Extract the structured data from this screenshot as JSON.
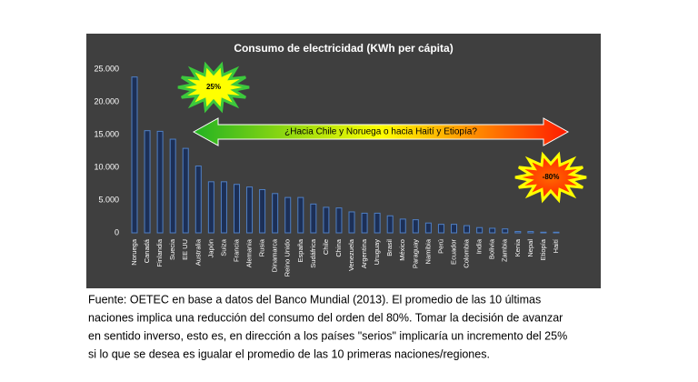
{
  "chart_data": {
    "type": "bar",
    "title": "Consumo de electricidad (KWh per cápita)",
    "categories": [
      "Noruega",
      "Canadá",
      "Finlandia",
      "Suecia",
      "EE UU",
      "Australia",
      "Japón",
      "Suiza",
      "Francia",
      "Alemania",
      "Rusia",
      "Dinamarca",
      "Reino Unido",
      "España",
      "Sudáfrica",
      "Chile",
      "China",
      "Venezuela",
      "Argentina",
      "Uruguay",
      "Brasil",
      "México",
      "Paraguay",
      "Namibia",
      "Perú",
      "Ecuador",
      "Colombia",
      "India",
      "Bolivia",
      "Zambia",
      "Kenia",
      "Nepal",
      "Etiopía",
      "Haití"
    ],
    "values": [
      23800,
      15600,
      15500,
      14300,
      12900,
      10200,
      7800,
      7800,
      7400,
      7000,
      6600,
      6000,
      5400,
      5400,
      4400,
      3900,
      3800,
      3200,
      3000,
      3000,
      2600,
      2100,
      2000,
      1500,
      1300,
      1300,
      1100,
      800,
      700,
      600,
      200,
      200,
      100,
      100
    ],
    "color": "#1c2f56",
    "ylim": [
      0,
      25000
    ],
    "yticks": [
      0,
      {
        "value": 5000,
        "label": "5.000"
      },
      {
        "value": 10000,
        "label": "10.000"
      },
      {
        "value": 15000,
        "label": "15.000"
      },
      {
        "value": 20000,
        "label": "20.000"
      },
      {
        "value": 25000,
        "label": "25.000"
      }
    ],
    "grid": false,
    "annotations": [
      "25%",
      "-80%",
      "¿Hacia Chile y Noruega o hacia Haití y Etiopía?"
    ]
  },
  "caption": [
    "Fuente: OETEC en base a datos del Banco Mundial (2013).  El promedio de las 10 últimas",
    "naciones implica una reducción del consumo del orden del 80%.  Tomar la decisión de avanzar",
    "en sentido inverso, esto es, en dirección a los países \"serios\" implicaría un incremento del 25%",
    "si lo  que se desea es igualar el promedio de las 10  primeras naciones/regiones."
  ]
}
